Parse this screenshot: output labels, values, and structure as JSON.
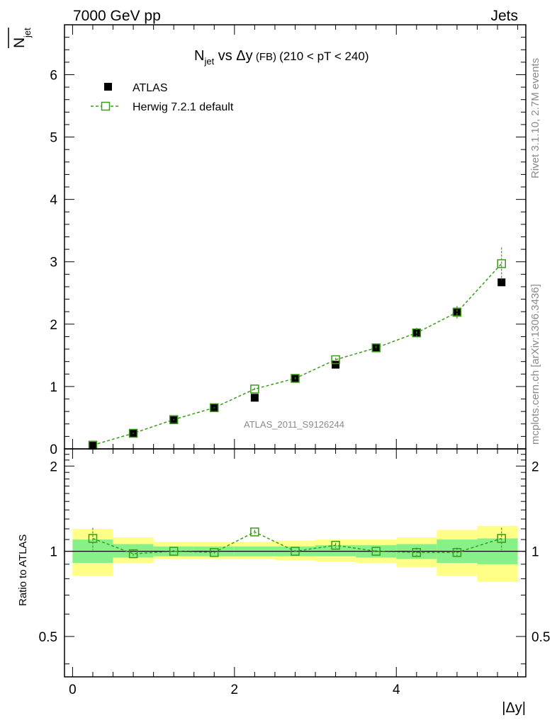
{
  "header": {
    "collider": "7000 GeV pp",
    "process": "Jets"
  },
  "side_labels": {
    "rivet": "Rivet 3.1.10,  2.7M events",
    "mcplots": "mcplots.cern.ch [arXiv:1306.3436]"
  },
  "colors": {
    "mc": "#3a9a1a",
    "band_outer": "#ffff88",
    "band_inner": "#88f088",
    "data": "#000000"
  },
  "chart_data": [
    {
      "type": "scatter",
      "panel": "main",
      "title_main": "N",
      "title_sub": "jet",
      "title_rest": " vs Δy",
      "title_small": " (FB) ",
      "title_range": "(210 < pT < 240)",
      "ylabel": "N̅jet",
      "watermark": "ATLAS_2011_S9126244",
      "xlim": [
        -0.1,
        5.6
      ],
      "ylim": [
        0,
        6.8
      ],
      "y_ticks": [
        0,
        1,
        2,
        3,
        4,
        5,
        6
      ],
      "y_tick_labels": [
        "0",
        "1",
        "2",
        "3",
        "4",
        "5",
        "6"
      ],
      "legend": [
        "ATLAS",
        "Herwig 7.2.1 default"
      ],
      "legend_position": "top-left",
      "series": [
        {
          "name": "ATLAS",
          "style": "filled-square",
          "x": [
            0.25,
            0.75,
            1.25,
            1.75,
            2.25,
            2.75,
            3.25,
            3.75,
            4.25,
            4.75,
            5.3
          ],
          "y": [
            0.05,
            0.25,
            0.46,
            0.66,
            0.82,
            1.13,
            1.35,
            1.62,
            1.86,
            2.2,
            2.67
          ]
        },
        {
          "name": "Herwig 7.2.1 default",
          "style": "open-square-dashed",
          "x": [
            0.25,
            0.75,
            1.25,
            1.75,
            2.25,
            2.75,
            3.25,
            3.75,
            4.25,
            4.75,
            5.3
          ],
          "y": [
            0.06,
            0.25,
            0.47,
            0.66,
            0.96,
            1.13,
            1.43,
            1.62,
            1.86,
            2.19,
            2.97
          ],
          "err": [
            0.01,
            0.01,
            0.01,
            0.01,
            0.02,
            0.02,
            0.03,
            0.03,
            0.08,
            0.1,
            0.26
          ]
        }
      ]
    },
    {
      "type": "scatter",
      "panel": "ratio",
      "ylabel": "Ratio to ATLAS",
      "xlabel": "|Δy|",
      "xlim": [
        -0.1,
        5.6
      ],
      "ylim": [
        0.36,
        2.3
      ],
      "y_scale": "log",
      "x_ticks": [
        0,
        2,
        4
      ],
      "x_tick_labels": [
        "0",
        "2",
        "4"
      ],
      "y_ticks": [
        0.5,
        1,
        2
      ],
      "y_tick_labels": [
        "0.5",
        "1",
        "2"
      ],
      "bands": {
        "edges": [
          0,
          0.5,
          1.0,
          1.5,
          2.0,
          2.5,
          3.0,
          3.5,
          4.0,
          4.5,
          5.0,
          5.5
        ],
        "outer_lo": [
          0.82,
          0.91,
          0.94,
          0.94,
          0.94,
          0.93,
          0.92,
          0.91,
          0.88,
          0.82,
          0.78
        ],
        "outer_hi": [
          1.2,
          1.12,
          1.08,
          1.08,
          1.08,
          1.09,
          1.1,
          1.1,
          1.12,
          1.19,
          1.23
        ],
        "inner_lo": [
          0.91,
          0.95,
          0.96,
          0.96,
          0.96,
          0.96,
          0.96,
          0.95,
          0.94,
          0.91,
          0.9
        ],
        "inner_hi": [
          1.1,
          1.06,
          1.04,
          1.04,
          1.04,
          1.04,
          1.05,
          1.05,
          1.06,
          1.1,
          1.11
        ]
      },
      "series": [
        {
          "name": "Herwig 7.2.1 default / ATLAS",
          "x": [
            0.25,
            0.75,
            1.25,
            1.75,
            2.25,
            2.75,
            3.25,
            3.75,
            4.25,
            4.75,
            5.3
          ],
          "y": [
            1.11,
            0.98,
            1.0,
            0.99,
            1.17,
            1.0,
            1.05,
            1.0,
            0.99,
            0.99,
            1.11
          ],
          "err": [
            0.1,
            0.03,
            0.01,
            0.01,
            0.02,
            0.01,
            0.02,
            0.01,
            0.04,
            0.04,
            0.1
          ]
        }
      ]
    }
  ]
}
